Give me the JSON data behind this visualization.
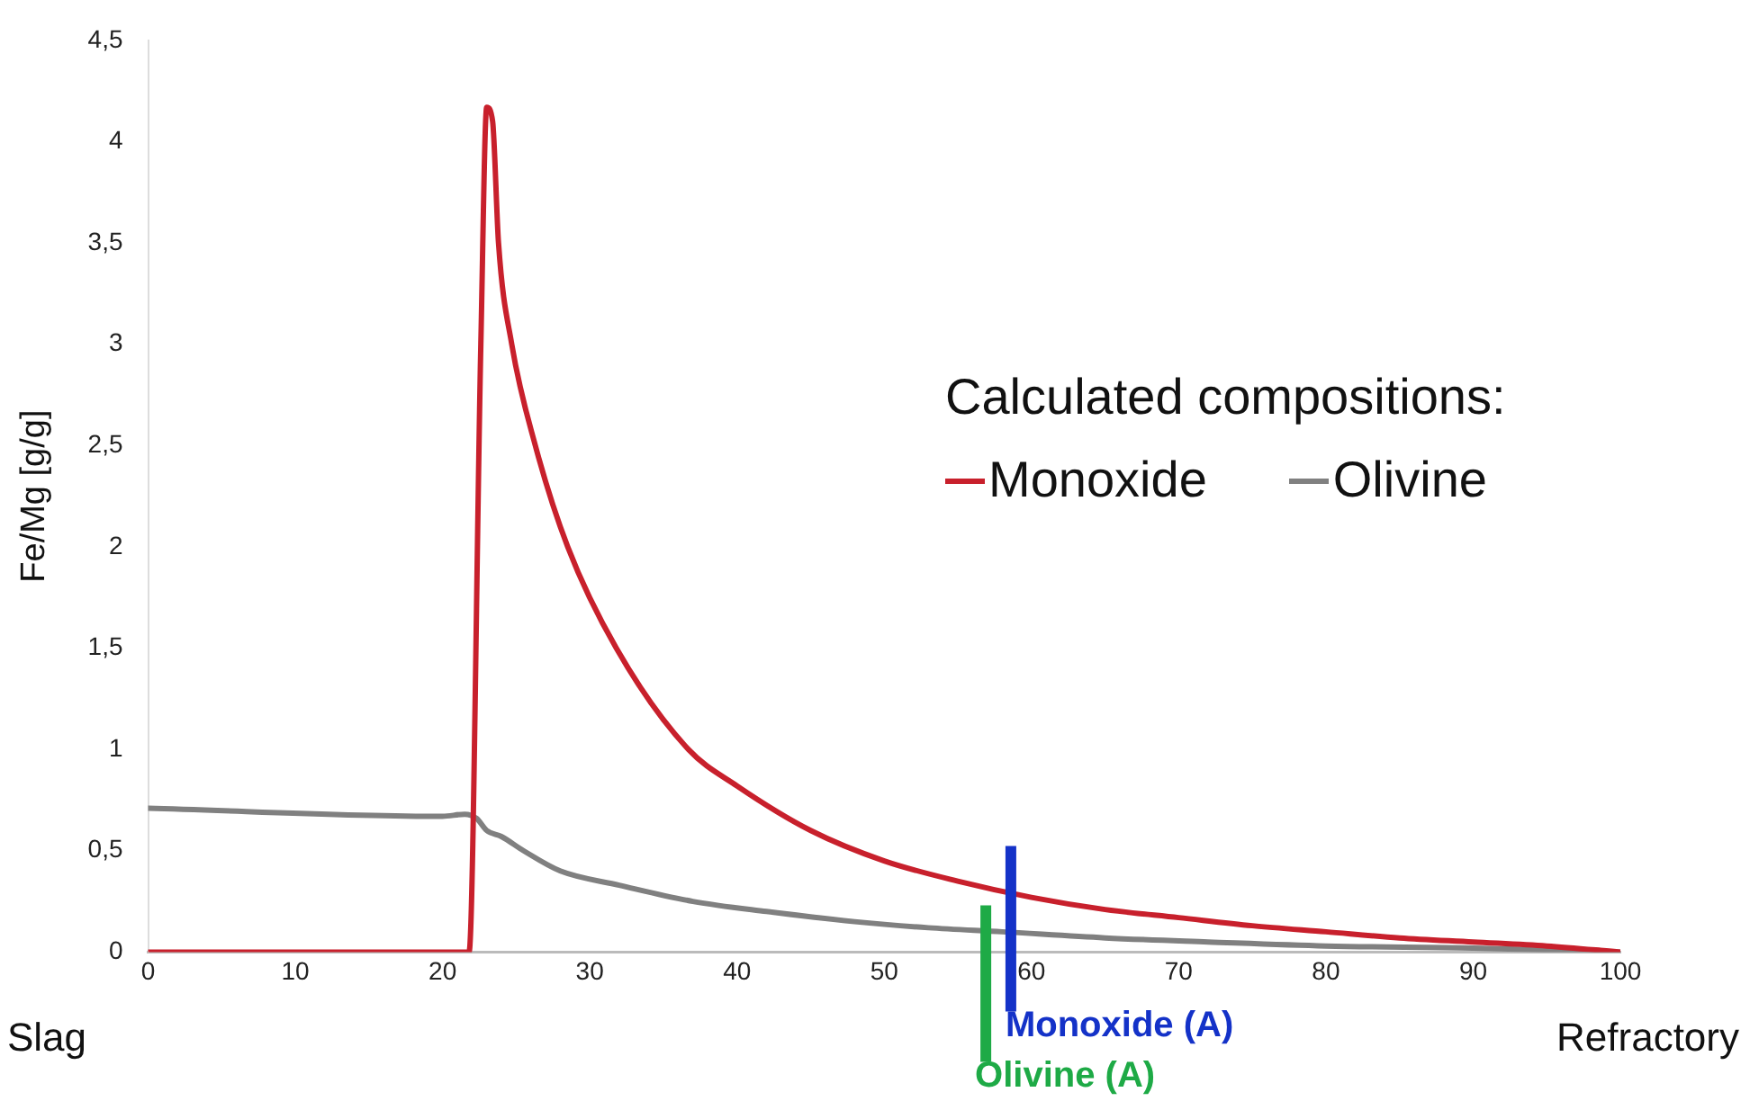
{
  "chart_data": {
    "type": "line",
    "ylabel": "Fe/Mg [g/g]",
    "legend_title": "Calculated compositions:",
    "legend": "right",
    "xlim": [
      0,
      100
    ],
    "xticks": [
      0,
      10,
      20,
      30,
      40,
      50,
      60,
      70,
      80,
      90,
      100
    ],
    "ylim": [
      0,
      4.5
    ],
    "yticks": [
      0,
      {
        "value": 0.5,
        "label": "0,5"
      },
      1,
      {
        "value": 1.5,
        "label": "1,5"
      },
      2,
      {
        "value": 2.5,
        "label": "2,5"
      },
      3,
      {
        "value": 3.5,
        "label": "3,5"
      },
      4,
      {
        "value": 4.5,
        "label": "4,5"
      }
    ],
    "grid": false,
    "marker": "none",
    "line_style": "solid",
    "series": [
      {
        "name": "Monoxide",
        "color": "#c8202c",
        "x": [
          0,
          21.8,
          22.6,
          23,
          23.4,
          23.8,
          24.7,
          26.3,
          28.5,
          31.8,
          36.7,
          40,
          45,
          50,
          55,
          60,
          65,
          70,
          75,
          80,
          85,
          90,
          95,
          100
        ],
        "values": [
          0,
          0,
          3.0,
          4.17,
          4.1,
          3.5,
          3.0,
          2.5,
          2.0,
          1.5,
          1.0,
          0.82,
          0.6,
          0.45,
          0.35,
          0.27,
          0.21,
          0.17,
          0.13,
          0.1,
          0.07,
          0.05,
          0.03,
          0
        ]
      },
      {
        "name": "Olivine",
        "color": "#808080",
        "x": [
          0,
          20,
          21.5,
          22.3,
          23,
          24,
          25.5,
          28,
          32,
          37,
          42,
          48,
          53,
          58,
          65,
          72,
          80,
          90,
          100
        ],
        "values": [
          0.71,
          0.67,
          0.68,
          0.66,
          0.6,
          0.57,
          0.5,
          0.4,
          0.33,
          0.25,
          0.2,
          0.15,
          0.12,
          0.1,
          0.07,
          0.05,
          0.03,
          0.02,
          0
        ]
      }
    ],
    "annotations": [
      "Slag",
      "Refractory"
    ],
    "ref_lines": [
      {
        "axis": "x",
        "value": 58.6,
        "label": "Monoxide (A)",
        "color": "#1432c8"
      },
      {
        "axis": "x",
        "value": 56.9,
        "label": "Olivine (A)",
        "color": "#1eaa46"
      }
    ]
  }
}
